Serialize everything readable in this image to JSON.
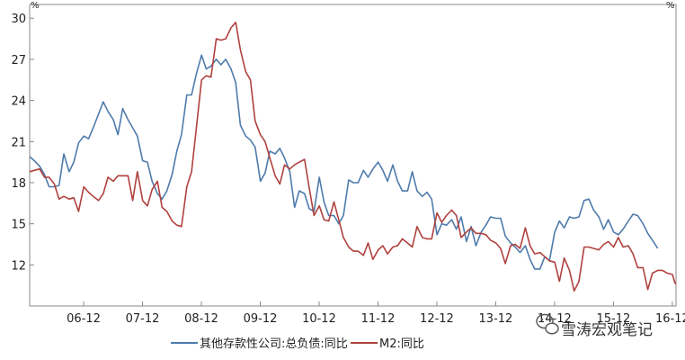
{
  "chart_data": {
    "type": "line",
    "title": "",
    "xlabel": "",
    "ylabel": "",
    "y_unit_left": "%",
    "y_unit_right": "%",
    "ylim": [
      9,
      31
    ],
    "yticks": [
      12,
      15,
      18,
      21,
      24,
      27,
      30
    ],
    "x_range": [
      2006.0,
      2016.98
    ],
    "xticks": [
      {
        "label": "06-12",
        "x": 2006.917
      },
      {
        "label": "07-12",
        "x": 2007.917
      },
      {
        "label": "08-12",
        "x": 2008.917
      },
      {
        "label": "09-12",
        "x": 2009.917
      },
      {
        "label": "10-12",
        "x": 2010.917
      },
      {
        "label": "11-12",
        "x": 2011.917
      },
      {
        "label": "12-12",
        "x": 2012.917
      },
      {
        "label": "13-12",
        "x": 2013.917
      },
      {
        "label": "14-12",
        "x": 2014.917
      },
      {
        "label": "15-12",
        "x": 2015.917
      },
      {
        "label": "16-12",
        "x": 2016.917
      }
    ],
    "grid": false,
    "legend_position": "bottom",
    "series": [
      {
        "name": "其他存款性公司:总负债:同比",
        "color": "#4f7bab",
        "points": [
          [
            2006.0,
            19.9
          ],
          [
            2006.08,
            19.6
          ],
          [
            2006.17,
            19.2
          ],
          [
            2006.25,
            18.6
          ],
          [
            2006.33,
            17.7
          ],
          [
            2006.42,
            17.7
          ],
          [
            2006.5,
            17.8
          ],
          [
            2006.58,
            20.1
          ],
          [
            2006.67,
            18.8
          ],
          [
            2006.75,
            19.5
          ],
          [
            2006.83,
            20.9
          ],
          [
            2006.92,
            21.4
          ],
          [
            2007.0,
            21.2
          ],
          [
            2007.08,
            22.0
          ],
          [
            2007.17,
            23.0
          ],
          [
            2007.25,
            23.9
          ],
          [
            2007.33,
            23.2
          ],
          [
            2007.42,
            22.6
          ],
          [
            2007.5,
            21.5
          ],
          [
            2007.58,
            23.4
          ],
          [
            2007.67,
            22.6
          ],
          [
            2007.75,
            22.0
          ],
          [
            2007.83,
            21.4
          ],
          [
            2007.92,
            19.6
          ],
          [
            2008.0,
            19.5
          ],
          [
            2008.08,
            18.1
          ],
          [
            2008.17,
            17.2
          ],
          [
            2008.25,
            16.8
          ],
          [
            2008.33,
            17.4
          ],
          [
            2008.42,
            18.6
          ],
          [
            2008.5,
            20.3
          ],
          [
            2008.58,
            21.5
          ],
          [
            2008.67,
            24.4
          ],
          [
            2008.75,
            24.4
          ],
          [
            2008.83,
            25.9
          ],
          [
            2008.92,
            27.3
          ],
          [
            2009.0,
            26.3
          ],
          [
            2009.08,
            26.5
          ],
          [
            2009.17,
            27.0
          ],
          [
            2009.25,
            26.6
          ],
          [
            2009.33,
            27.0
          ],
          [
            2009.42,
            26.3
          ],
          [
            2009.5,
            25.3
          ],
          [
            2009.58,
            22.2
          ],
          [
            2009.67,
            21.4
          ],
          [
            2009.75,
            21.1
          ],
          [
            2009.83,
            20.6
          ],
          [
            2009.92,
            18.1
          ],
          [
            2010.0,
            18.7
          ],
          [
            2010.08,
            20.3
          ],
          [
            2010.17,
            20.1
          ],
          [
            2010.25,
            20.5
          ],
          [
            2010.33,
            19.8
          ],
          [
            2010.42,
            18.8
          ],
          [
            2010.5,
            16.2
          ],
          [
            2010.58,
            17.4
          ],
          [
            2010.67,
            17.2
          ],
          [
            2010.75,
            16.1
          ],
          [
            2010.83,
            15.9
          ],
          [
            2010.92,
            18.4
          ],
          [
            2011.0,
            16.6
          ],
          [
            2011.08,
            15.6
          ],
          [
            2011.17,
            15.6
          ],
          [
            2011.25,
            15.0
          ],
          [
            2011.33,
            15.6
          ],
          [
            2011.42,
            18.2
          ],
          [
            2011.5,
            18.0
          ],
          [
            2011.58,
            18.0
          ],
          [
            2011.67,
            18.9
          ],
          [
            2011.75,
            18.4
          ],
          [
            2011.83,
            19.0
          ],
          [
            2011.92,
            19.5
          ],
          [
            2012.0,
            18.9
          ],
          [
            2012.08,
            18.1
          ],
          [
            2012.17,
            19.3
          ],
          [
            2012.25,
            18.1
          ],
          [
            2012.33,
            17.4
          ],
          [
            2012.42,
            17.4
          ],
          [
            2012.5,
            18.8
          ],
          [
            2012.58,
            17.4
          ],
          [
            2012.67,
            17.0
          ],
          [
            2012.75,
            17.3
          ],
          [
            2012.83,
            16.8
          ],
          [
            2012.92,
            14.2
          ],
          [
            2013.0,
            15.0
          ],
          [
            2013.08,
            14.9
          ],
          [
            2013.17,
            15.3
          ],
          [
            2013.25,
            14.6
          ],
          [
            2013.33,
            15.5
          ],
          [
            2013.42,
            13.7
          ],
          [
            2013.5,
            14.8
          ],
          [
            2013.58,
            13.4
          ],
          [
            2013.67,
            14.4
          ],
          [
            2013.75,
            14.9
          ],
          [
            2013.83,
            15.5
          ],
          [
            2013.92,
            15.4
          ],
          [
            2014.0,
            15.4
          ],
          [
            2014.08,
            14.1
          ],
          [
            2014.17,
            13.6
          ],
          [
            2014.25,
            13.3
          ],
          [
            2014.33,
            12.9
          ],
          [
            2014.42,
            13.4
          ],
          [
            2014.5,
            12.4
          ],
          [
            2014.58,
            11.7
          ],
          [
            2014.67,
            11.7
          ],
          [
            2014.75,
            12.6
          ],
          [
            2014.83,
            12.3
          ],
          [
            2014.92,
            14.4
          ],
          [
            2015.0,
            15.2
          ],
          [
            2015.08,
            14.7
          ],
          [
            2015.17,
            15.5
          ],
          [
            2015.25,
            15.4
          ],
          [
            2015.33,
            15.5
          ],
          [
            2015.42,
            16.7
          ],
          [
            2015.5,
            16.8
          ],
          [
            2015.58,
            16.0
          ],
          [
            2015.67,
            15.5
          ],
          [
            2015.75,
            14.6
          ],
          [
            2015.83,
            15.3
          ],
          [
            2015.92,
            14.4
          ],
          [
            2016.0,
            14.2
          ],
          [
            2016.08,
            14.6
          ],
          [
            2016.17,
            15.2
          ],
          [
            2016.25,
            15.7
          ],
          [
            2016.33,
            15.6
          ],
          [
            2016.42,
            15.0
          ],
          [
            2016.5,
            14.3
          ],
          [
            2016.58,
            13.8
          ],
          [
            2016.67,
            13.2
          ]
        ]
      },
      {
        "name": "M2:同比",
        "color": "#b0413e",
        "points": [
          [
            2006.0,
            18.8
          ],
          [
            2006.08,
            18.9
          ],
          [
            2006.17,
            19.0
          ],
          [
            2006.25,
            18.4
          ],
          [
            2006.33,
            18.4
          ],
          [
            2006.42,
            17.9
          ],
          [
            2006.5,
            16.8
          ],
          [
            2006.58,
            17.0
          ],
          [
            2006.67,
            16.8
          ],
          [
            2006.75,
            16.9
          ],
          [
            2006.83,
            15.9
          ],
          [
            2006.92,
            17.7
          ],
          [
            2007.0,
            17.3
          ],
          [
            2007.08,
            17.0
          ],
          [
            2007.17,
            16.7
          ],
          [
            2007.25,
            17.2
          ],
          [
            2007.33,
            18.4
          ],
          [
            2007.42,
            18.1
          ],
          [
            2007.5,
            18.5
          ],
          [
            2007.58,
            18.5
          ],
          [
            2007.67,
            18.5
          ],
          [
            2007.75,
            16.7
          ],
          [
            2007.83,
            18.8
          ],
          [
            2007.92,
            16.7
          ],
          [
            2008.0,
            16.3
          ],
          [
            2008.08,
            17.5
          ],
          [
            2008.17,
            18.1
          ],
          [
            2008.25,
            16.2
          ],
          [
            2008.33,
            15.9
          ],
          [
            2008.42,
            15.2
          ],
          [
            2008.5,
            14.9
          ],
          [
            2008.58,
            14.8
          ],
          [
            2008.67,
            17.7
          ],
          [
            2008.75,
            18.8
          ],
          [
            2008.83,
            21.9
          ],
          [
            2008.92,
            25.5
          ],
          [
            2009.0,
            25.8
          ],
          [
            2009.08,
            25.7
          ],
          [
            2009.17,
            28.5
          ],
          [
            2009.25,
            28.4
          ],
          [
            2009.33,
            28.5
          ],
          [
            2009.42,
            29.3
          ],
          [
            2009.5,
            29.7
          ],
          [
            2009.58,
            27.7
          ],
          [
            2009.67,
            26.1
          ],
          [
            2009.75,
            25.5
          ],
          [
            2009.83,
            22.5
          ],
          [
            2009.92,
            21.5
          ],
          [
            2010.0,
            21.0
          ],
          [
            2010.08,
            19.8
          ],
          [
            2010.17,
            18.5
          ],
          [
            2010.25,
            17.9
          ],
          [
            2010.33,
            19.3
          ],
          [
            2010.42,
            19.0
          ],
          [
            2010.5,
            19.3
          ],
          [
            2010.58,
            19.5
          ],
          [
            2010.67,
            19.7
          ],
          [
            2010.75,
            17.6
          ],
          [
            2010.83,
            15.6
          ],
          [
            2010.92,
            16.3
          ],
          [
            2011.0,
            15.3
          ],
          [
            2011.08,
            15.2
          ],
          [
            2011.17,
            16.6
          ],
          [
            2011.25,
            15.3
          ],
          [
            2011.33,
            14.0
          ],
          [
            2011.42,
            13.3
          ],
          [
            2011.5,
            13.0
          ],
          [
            2011.58,
            13.0
          ],
          [
            2011.67,
            12.7
          ],
          [
            2011.75,
            13.6
          ],
          [
            2011.83,
            12.4
          ],
          [
            2011.92,
            13.1
          ],
          [
            2012.0,
            13.4
          ],
          [
            2012.08,
            12.8
          ],
          [
            2012.17,
            13.3
          ],
          [
            2012.25,
            13.4
          ],
          [
            2012.33,
            13.9
          ],
          [
            2012.42,
            13.6
          ],
          [
            2012.5,
            13.3
          ],
          [
            2012.58,
            14.8
          ],
          [
            2012.67,
            14.0
          ],
          [
            2012.75,
            13.9
          ],
          [
            2012.83,
            13.9
          ],
          [
            2012.92,
            15.8
          ],
          [
            2013.0,
            15.1
          ],
          [
            2013.08,
            15.6
          ],
          [
            2013.17,
            16.0
          ],
          [
            2013.25,
            15.6
          ],
          [
            2013.33,
            14.0
          ],
          [
            2013.42,
            14.4
          ],
          [
            2013.5,
            14.7
          ],
          [
            2013.58,
            14.3
          ],
          [
            2013.67,
            14.3
          ],
          [
            2013.75,
            14.2
          ],
          [
            2013.83,
            13.8
          ],
          [
            2013.92,
            13.6
          ],
          [
            2014.0,
            13.2
          ],
          [
            2014.08,
            12.1
          ],
          [
            2014.17,
            13.4
          ],
          [
            2014.25,
            13.5
          ],
          [
            2014.33,
            13.2
          ],
          [
            2014.42,
            14.7
          ],
          [
            2014.5,
            13.4
          ],
          [
            2014.58,
            12.8
          ],
          [
            2014.67,
            12.9
          ],
          [
            2014.75,
            12.6
          ],
          [
            2014.83,
            12.3
          ],
          [
            2014.92,
            12.2
          ],
          [
            2015.0,
            10.8
          ],
          [
            2015.08,
            12.5
          ],
          [
            2015.17,
            11.6
          ],
          [
            2015.25,
            10.1
          ],
          [
            2015.33,
            10.8
          ],
          [
            2015.42,
            13.3
          ],
          [
            2015.5,
            13.3
          ],
          [
            2015.58,
            13.2
          ],
          [
            2015.67,
            13.1
          ],
          [
            2015.75,
            13.5
          ],
          [
            2015.83,
            13.7
          ],
          [
            2015.92,
            13.3
          ],
          [
            2016.0,
            14.0
          ],
          [
            2016.08,
            13.3
          ],
          [
            2016.17,
            13.4
          ],
          [
            2016.25,
            12.8
          ],
          [
            2016.33,
            11.8
          ],
          [
            2016.42,
            11.8
          ],
          [
            2016.5,
            10.2
          ],
          [
            2016.58,
            11.4
          ],
          [
            2016.67,
            11.6
          ],
          [
            2016.75,
            11.6
          ],
          [
            2016.83,
            11.4
          ],
          [
            2016.92,
            11.3
          ],
          [
            2016.96,
            10.7
          ],
          [
            2016.98,
            10.6
          ]
        ]
      }
    ]
  },
  "watermark": {
    "text": "雪涛宏观笔记",
    "icon": "wechat-icon"
  }
}
